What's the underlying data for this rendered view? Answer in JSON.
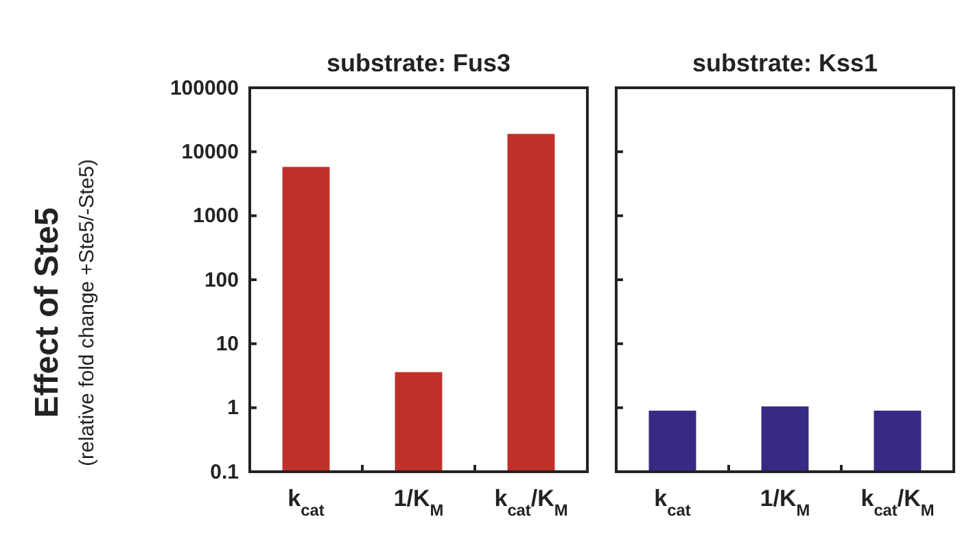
{
  "chart_data": [
    {
      "type": "bar",
      "title": "substrate: Fus3",
      "ylabel": "Effect of Ste5\n(relative fold change +Ste5/-Ste5)",
      "categories": [
        "k$_{cat}$",
        "1/K$_{M}$",
        "k$_{cat}$/K$_{M}$"
      ],
      "values": [
        5800,
        3.6,
        19000
      ],
      "color": "#c0302a",
      "log": true,
      "ylim": [
        0.1,
        100000
      ],
      "yticks": [
        0.1,
        1,
        10,
        100,
        1000,
        10000,
        100000
      ]
    },
    {
      "type": "bar",
      "title": "substrate: Kss1",
      "categories": [
        "k$_{cat}$",
        "1/K$_{M}$",
        "k$_{cat}$/K$_{M}$"
      ],
      "values": [
        0.9,
        1.05,
        0.9
      ],
      "color": "#362a84",
      "log": true,
      "ylim": [
        0.1,
        100000
      ],
      "yticks": [
        0.1,
        1,
        10,
        100,
        1000,
        10000,
        100000
      ],
      "tick_labels": "x"
    }
  ]
}
